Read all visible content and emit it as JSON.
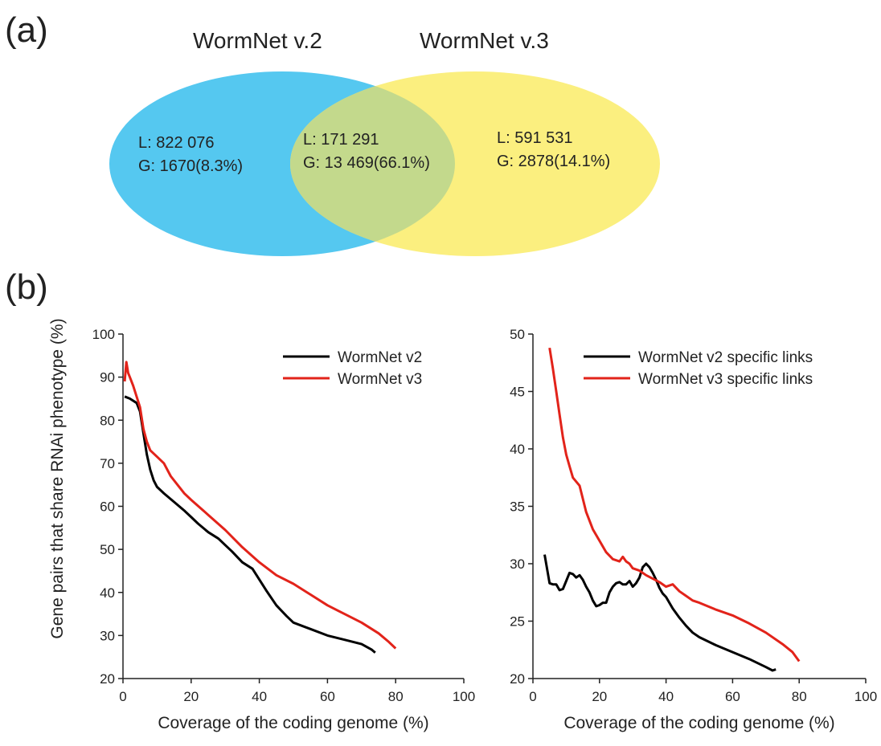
{
  "panel_a_label": "(a)",
  "panel_b_label": "(b)",
  "venn": {
    "left_title": "WormNet v.2",
    "right_title": "WormNet v.3",
    "left_color": "#55c8f0",
    "right_color": "#fbef7f",
    "overlap_color": "#c3d98c",
    "left_only": {
      "L": "L: 822 076",
      "G": "G: 1670(8.3%)"
    },
    "overlap": {
      "L": "L: 171 291",
      "G": "G: 13 469(66.1%)"
    },
    "right_only": {
      "L": "L: 591 531",
      "G": "G: 2878(14.1%)"
    }
  },
  "shared_ylabel": "Gene pairs that share RNAi phenotype (%)",
  "chart_data": [
    {
      "type": "line",
      "xlabel": "Coverage of the coding genome (%)",
      "ylabel": "Gene pairs that share RNAi phenotype (%)",
      "xlim": [
        0,
        100
      ],
      "ylim": [
        20,
        100
      ],
      "xticks": [
        0,
        20,
        40,
        60,
        80,
        100
      ],
      "yticks": [
        20,
        30,
        40,
        50,
        60,
        70,
        80,
        90,
        100
      ],
      "legend_position": "top-right",
      "series": [
        {
          "name": "WormNet v2",
          "color": "#000000",
          "x": [
            0.5,
            2,
            4,
            5,
            6,
            7,
            8,
            9,
            10,
            12,
            15,
            18,
            20,
            22,
            25,
            28,
            30,
            32,
            35,
            38,
            40,
            42,
            45,
            48,
            50,
            55,
            60,
            65,
            70,
            73,
            74
          ],
          "y": [
            85.5,
            85,
            84,
            82,
            77,
            72,
            68.5,
            66,
            64.5,
            63,
            61,
            59,
            57.5,
            56,
            54,
            52.5,
            51,
            49.5,
            47,
            45.5,
            43,
            40.5,
            37,
            34.5,
            33,
            31.5,
            30,
            29,
            28,
            26.7,
            26
          ]
        },
        {
          "name": "WormNet v3",
          "color": "#e2231a",
          "x": [
            0.5,
            1,
            1.5,
            2,
            3,
            5,
            6,
            7,
            8,
            10,
            12,
            14,
            16,
            18,
            20,
            25,
            30,
            35,
            40,
            45,
            50,
            55,
            60,
            65,
            70,
            75,
            78,
            80
          ],
          "y": [
            89,
            93.5,
            91,
            90,
            88,
            83,
            78,
            75,
            73,
            71.5,
            70,
            67,
            65,
            63,
            61.5,
            58,
            54.5,
            50.5,
            47,
            44,
            42,
            39.5,
            37,
            35,
            33,
            30.5,
            28.5,
            27
          ]
        }
      ]
    },
    {
      "type": "line",
      "xlabel": "Coverage of the coding genome (%)",
      "xlim": [
        0,
        100
      ],
      "ylim": [
        20,
        50
      ],
      "xticks": [
        0,
        20,
        40,
        60,
        80,
        100
      ],
      "yticks": [
        20,
        25,
        30,
        35,
        40,
        45,
        50
      ],
      "legend_position": "top-right",
      "series": [
        {
          "name": "WormNet v2 specific links",
          "color": "#000000",
          "x": [
            3.5,
            5,
            6,
            7,
            8,
            9,
            10,
            11,
            12,
            13,
            14,
            15,
            16,
            17,
            18,
            19,
            20,
            21,
            22,
            23,
            24,
            25,
            26,
            27,
            28,
            29,
            30,
            31,
            32,
            33,
            34,
            35,
            36,
            37,
            38,
            39,
            40,
            42,
            44,
            46,
            48,
            50,
            55,
            60,
            65,
            70,
            72,
            73
          ],
          "y": [
            30.8,
            28.3,
            28.2,
            28.2,
            27.7,
            27.8,
            28.5,
            29.2,
            29.1,
            28.8,
            29.0,
            28.6,
            28.0,
            27.5,
            26.8,
            26.3,
            26.4,
            26.6,
            26.6,
            27.5,
            28.0,
            28.3,
            28.4,
            28.2,
            28.2,
            28.5,
            28.0,
            28.3,
            28.8,
            29.7,
            30.0,
            29.7,
            29.2,
            28.6,
            27.9,
            27.4,
            27.1,
            26.1,
            25.3,
            24.6,
            24.0,
            23.6,
            22.9,
            22.3,
            21.7,
            21.0,
            20.7,
            20.8
          ]
        },
        {
          "name": "WormNet v3 specific links",
          "color": "#e2231a",
          "x": [
            5,
            6,
            7,
            8,
            9,
            10,
            11,
            12,
            14,
            16,
            18,
            20,
            22,
            24,
            26,
            27,
            28,
            29,
            30,
            32,
            34,
            36,
            38,
            40,
            42,
            44,
            46,
            48,
            50,
            55,
            60,
            65,
            70,
            75,
            78,
            80
          ],
          "y": [
            48.8,
            47,
            45,
            43,
            41,
            39.5,
            38.5,
            37.5,
            36.8,
            34.5,
            33,
            32,
            31,
            30.4,
            30.2,
            30.6,
            30.2,
            30.0,
            29.6,
            29.4,
            29.0,
            28.7,
            28.4,
            28.0,
            28.2,
            27.6,
            27.2,
            26.8,
            26.6,
            26.0,
            25.5,
            24.8,
            24.0,
            23.0,
            22.3,
            21.5
          ]
        }
      ]
    }
  ]
}
